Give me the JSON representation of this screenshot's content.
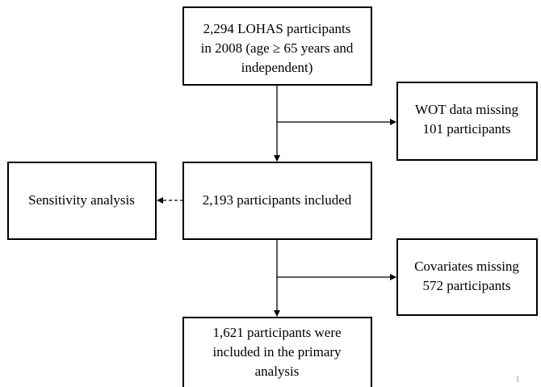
{
  "nodes": [
    {
      "lines": [
        "2,294 LOHAS participants",
        "in 2008 (age ≥ 65 years and",
        "independent)"
      ]
    },
    {
      "lines": [
        "WOT data missing",
        "101 participants"
      ]
    },
    {
      "lines": [
        "Sensitivity analysis"
      ]
    },
    {
      "lines": [
        "2,193 participants included"
      ]
    },
    {
      "lines": [
        "Covariates missing",
        "572 participants"
      ]
    },
    {
      "lines": [
        "1,621 participants were",
        "included in the primary",
        "analysis"
      ]
    }
  ],
  "page_number": "1"
}
